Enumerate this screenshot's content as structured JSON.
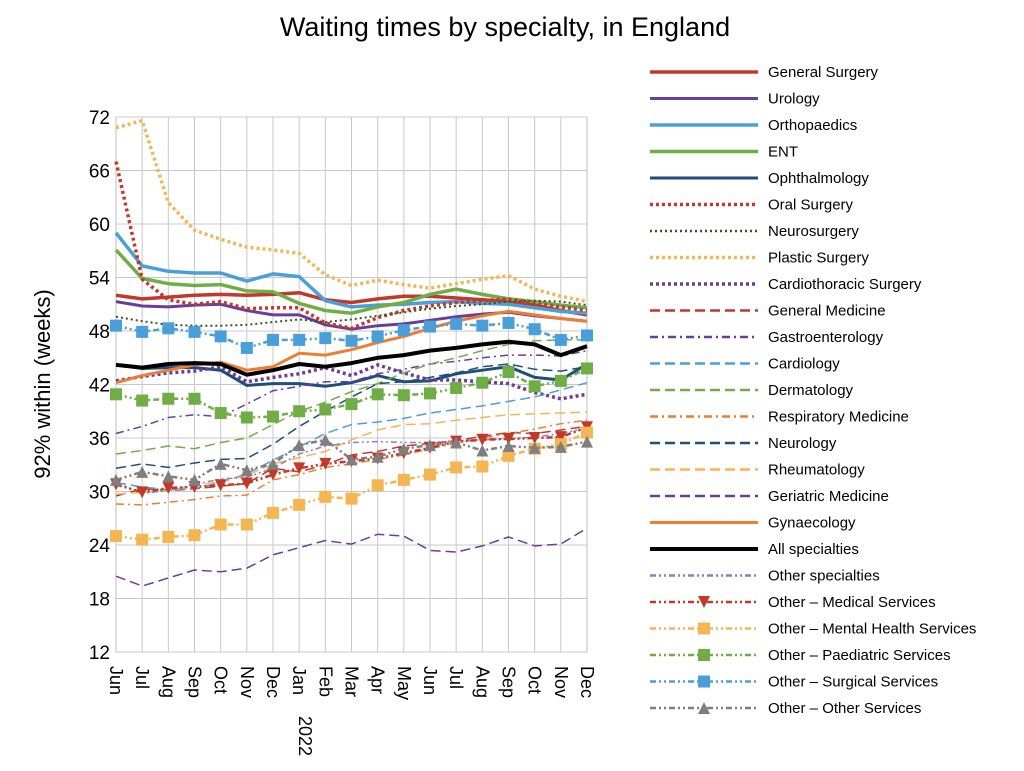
{
  "chart_data": {
    "type": "line",
    "title": "Waiting times by specialty, in England",
    "xlabel": "",
    "ylabel": "92% within (weeks)",
    "ylim": [
      12,
      72
    ],
    "yticks": [
      12,
      18,
      24,
      30,
      36,
      42,
      48,
      54,
      60,
      66,
      72
    ],
    "categories": [
      "Jun",
      "Jul",
      "Aug",
      "Sep",
      "Oct",
      "Nov",
      "Dec",
      "Jan",
      "Feb",
      "Mar",
      "Apr",
      "May",
      "Jun",
      "Jul",
      "Aug",
      "Sep",
      "Oct",
      "Nov",
      "Dec"
    ],
    "year_label": "2022",
    "grid": true,
    "legend_position": "right",
    "series": [
      {
        "name": "General  Surgery",
        "color": "#c0392b",
        "dash": "solid",
        "width": 3.5,
        "values": [
          52.0,
          51.6,
          51.8,
          52.0,
          52.1,
          52.0,
          52.1,
          52.3,
          51.5,
          51.2,
          51.6,
          51.9,
          51.9,
          51.7,
          51.5,
          51.3,
          50.9,
          50.3,
          49.8
        ]
      },
      {
        "name": "Urology",
        "color": "#6a3d9a",
        "dash": "solid",
        "width": 3,
        "values": [
          51.3,
          50.8,
          50.7,
          50.9,
          51.0,
          50.3,
          49.8,
          49.8,
          48.7,
          48.2,
          48.6,
          48.8,
          49.2,
          49.6,
          49.9,
          50.1,
          49.7,
          49.4,
          49.1
        ]
      },
      {
        "name": "Orthopaedics",
        "color": "#4a9fd8",
        "dash": "solid",
        "width": 3.5,
        "values": [
          59.0,
          55.3,
          54.7,
          54.5,
          54.5,
          53.6,
          54.4,
          54.1,
          51.4,
          50.7,
          50.9,
          51.0,
          51.2,
          51.3,
          51.1,
          51.0,
          50.6,
          50.2,
          50.0
        ]
      },
      {
        "name": "ENT",
        "color": "#70ad47",
        "dash": "solid",
        "width": 3.5,
        "values": [
          57.1,
          53.9,
          53.3,
          53.1,
          53.2,
          52.5,
          52.4,
          51.1,
          50.3,
          50.0,
          50.7,
          51.2,
          52.1,
          52.7,
          52.1,
          51.6,
          51.3,
          50.9,
          50.6
        ]
      },
      {
        "name": "Ophthalmology",
        "color": "#1f4e79",
        "dash": "solid",
        "width": 3,
        "values": [
          44.2,
          43.8,
          43.9,
          43.9,
          43.6,
          41.9,
          42.1,
          42.1,
          41.8,
          42.2,
          43.0,
          42.3,
          42.4,
          43.2,
          43.6,
          44.0,
          42.8,
          42.5,
          44.3
        ]
      },
      {
        "name": "Oral  Surgery",
        "color": "#c0392b",
        "dash": "3,3",
        "width": 3.5,
        "values": [
          67.0,
          53.8,
          51.5,
          51.0,
          51.3,
          50.5,
          50.6,
          50.6,
          48.9,
          48.3,
          49.5,
          50.3,
          50.8,
          51.2,
          51.4,
          51.6,
          51.1,
          50.7,
          50.3
        ]
      },
      {
        "name": "Neurosurgery",
        "color": "#375623",
        "dash": "2,3",
        "width": 2,
        "values": [
          49.6,
          49.1,
          48.7,
          48.6,
          48.6,
          48.7,
          49.0,
          49.3,
          49.0,
          49.3,
          49.7,
          50.1,
          50.5,
          50.8,
          51.0,
          51.3,
          51.4,
          51.3,
          50.9
        ]
      },
      {
        "name": "Plastic  Surgery",
        "color": "#f4b553",
        "dash": "3,3",
        "width": 3.5,
        "values": [
          70.8,
          71.6,
          62.4,
          59.3,
          58.3,
          57.4,
          57.1,
          56.7,
          54.3,
          53.1,
          53.7,
          53.2,
          52.8,
          53.3,
          53.8,
          54.2,
          52.7,
          51.9,
          51.3
        ]
      },
      {
        "name": "Cardiothoracic  Surgery",
        "color": "#6a3d9a",
        "dash": "3,3",
        "width": 3.5,
        "values": [
          42.4,
          42.9,
          43.3,
          43.5,
          44.0,
          42.3,
          42.8,
          43.2,
          43.9,
          43.0,
          44.2,
          43.3,
          42.5,
          42.5,
          42.3,
          42.1,
          41.1,
          40.4,
          40.9
        ]
      },
      {
        "name": "General  Medicine",
        "color": "#c0392b",
        "dash": "10,5",
        "width": 1.5,
        "values": [
          29.5,
          30.3,
          30.1,
          30.3,
          30.6,
          30.9,
          32.6,
          32.2,
          33.0,
          34.1,
          34.5,
          35.1,
          35.4,
          35.7,
          36.2,
          36.6,
          36.5,
          36.9,
          37.3
        ]
      },
      {
        "name": "Gastroenterology",
        "color": "#6a3d9a",
        "dash": "8,4,2,4",
        "width": 1.5,
        "values": [
          36.5,
          37.3,
          38.3,
          38.6,
          38.4,
          39.8,
          41.3,
          41.8,
          42.3,
          42.3,
          43.2,
          43.7,
          44.3,
          44.6,
          45.0,
          45.3,
          45.3,
          45.2,
          45.8
        ]
      },
      {
        "name": "Cardiology",
        "color": "#4a9fd8",
        "dash": "10,5",
        "width": 1.5,
        "values": [
          31.0,
          30.5,
          30.2,
          30.3,
          31.0,
          32.0,
          33.5,
          35.0,
          36.5,
          37.5,
          37.8,
          38.2,
          38.8,
          39.2,
          39.6,
          40.1,
          40.6,
          41.4,
          42.2
        ]
      },
      {
        "name": "Dermatology",
        "color": "#70ad47",
        "dash": "10,5",
        "width": 1.5,
        "values": [
          34.2,
          34.6,
          35.1,
          34.8,
          35.5,
          36.0,
          37.5,
          39.0,
          40.0,
          41.2,
          42.1,
          43.3,
          44.3,
          45.0,
          45.8,
          46.5,
          46.9,
          47.0,
          47.0
        ]
      },
      {
        "name": "Respiratory  Medicine",
        "color": "#ed7d31",
        "dash": "8,4,2,4",
        "width": 1.5,
        "values": [
          28.6,
          28.5,
          28.8,
          29.1,
          29.5,
          29.6,
          31.3,
          31.9,
          32.7,
          33.1,
          33.6,
          34.1,
          34.8,
          35.4,
          36.0,
          36.5,
          37.0,
          37.6,
          38.0
        ]
      },
      {
        "name": "Neurology",
        "color": "#1f4e79",
        "dash": "10,5",
        "width": 1.5,
        "values": [
          32.6,
          33.1,
          32.7,
          33.2,
          33.6,
          33.7,
          35.3,
          37.3,
          39.0,
          40.6,
          42.1,
          42.3,
          42.8,
          43.3,
          44.0,
          44.3,
          43.7,
          43.5,
          44.0
        ]
      },
      {
        "name": "Rheumatology",
        "color": "#f4b553",
        "dash": "10,5",
        "width": 1.5,
        "values": [
          29.7,
          29.9,
          30.1,
          30.7,
          31.1,
          31.8,
          33.1,
          33.8,
          34.5,
          35.8,
          36.9,
          37.5,
          37.6,
          38.0,
          38.3,
          38.6,
          38.7,
          38.8,
          38.9
        ]
      },
      {
        "name": "Geriatric  Medicine",
        "color": "#6a3d9a",
        "dash": "10,5",
        "width": 1.5,
        "values": [
          20.5,
          19.4,
          20.3,
          21.2,
          21.0,
          21.4,
          22.9,
          23.7,
          24.5,
          24.1,
          25.2,
          25.0,
          23.4,
          23.2,
          23.9,
          24.9,
          23.9,
          24.1,
          25.9
        ]
      },
      {
        "name": "Gynaecology",
        "color": "#ed7d31",
        "dash": "solid",
        "width": 3,
        "values": [
          42.2,
          43.0,
          43.6,
          44.2,
          44.5,
          43.6,
          44.0,
          45.5,
          45.3,
          45.9,
          46.7,
          47.4,
          48.3,
          49.1,
          49.7,
          50.2,
          49.8,
          49.4,
          49.1
        ]
      },
      {
        "name": "All  specialties",
        "color": "#000000",
        "dash": "solid",
        "width": 4,
        "values": [
          44.2,
          43.9,
          44.3,
          44.4,
          44.3,
          43.1,
          43.6,
          44.3,
          44.0,
          44.4,
          45.0,
          45.3,
          45.8,
          46.1,
          46.5,
          46.8,
          46.5,
          45.3,
          46.3
        ]
      },
      {
        "name": "Other  specialties",
        "color": "#8e7cc3",
        "dash": "6,3,2,3,2,3",
        "width": 1.5,
        "values": [
          31.0,
          29.8,
          30.1,
          30.8,
          31.4,
          31.6,
          32.6,
          34.2,
          35.1,
          35.5,
          35.6,
          35.5,
          35.5,
          35.7,
          35.8,
          35.9,
          36.1,
          36.5,
          37.1
        ]
      },
      {
        "name": "Other  –  Medical Services",
        "color": "#c0392b",
        "dash": "6,3,2,3,2,3",
        "width": 2.5,
        "marker": "triangle-down",
        "values": [
          30.8,
          29.9,
          30.4,
          30.5,
          30.7,
          30.9,
          31.9,
          32.6,
          33.1,
          33.4,
          33.7,
          34.3,
          34.9,
          35.6,
          35.8,
          35.9,
          36.0,
          36.1,
          37.2
        ]
      },
      {
        "name": "Other  –  Mental Health Services",
        "color": "#f4b553",
        "dash": "6,3,2,3,2,3",
        "width": 2.5,
        "marker": "square",
        "values": [
          25.0,
          24.6,
          24.9,
          25.1,
          26.3,
          26.3,
          27.6,
          28.5,
          29.4,
          29.2,
          30.7,
          31.3,
          31.9,
          32.7,
          32.8,
          34.0,
          34.8,
          35.3,
          36.6
        ]
      },
      {
        "name": "Other  –  Paediatric Services",
        "color": "#70ad47",
        "dash": "6,3,2,3,2,3",
        "width": 2.5,
        "marker": "square",
        "values": [
          40.9,
          40.2,
          40.4,
          40.4,
          38.8,
          38.3,
          38.4,
          39.0,
          39.2,
          39.8,
          40.9,
          40.8,
          41.0,
          41.6,
          42.2,
          43.4,
          41.8,
          42.4,
          43.8
        ]
      },
      {
        "name": "Other  –  Surgical Services",
        "color": "#4a9fd8",
        "dash": "6,3,2,3,2,3",
        "width": 2.5,
        "marker": "square",
        "values": [
          48.6,
          47.9,
          48.3,
          47.9,
          47.4,
          46.1,
          47.0,
          47.0,
          47.2,
          46.9,
          47.4,
          48.1,
          48.5,
          48.8,
          48.6,
          48.9,
          48.2,
          47.0,
          47.5
        ]
      },
      {
        "name": "Other  –  Other Services",
        "color": "#7f7f7f",
        "dash": "6,3,2,3,2,3",
        "width": 2.5,
        "marker": "triangle-up",
        "values": [
          31.3,
          32.2,
          31.7,
          31.3,
          33.1,
          32.4,
          33.1,
          35.2,
          35.8,
          33.6,
          33.9,
          34.8,
          35.2,
          35.5,
          34.6,
          35.1,
          34.9,
          35.0,
          35.6
        ]
      }
    ]
  }
}
